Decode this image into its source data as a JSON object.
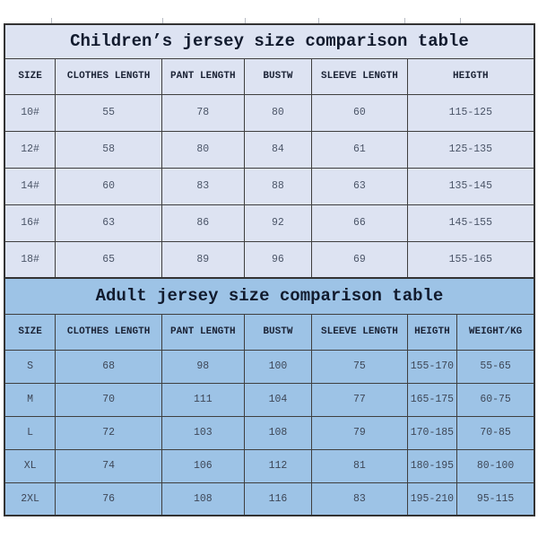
{
  "colors": {
    "children_bg": "#dde3f2",
    "adult_bg": "#9dc3e6",
    "grid_line": "#3f3f3f",
    "outer_border": "#333333",
    "title_text": "#121b2e",
    "data_text": "#4b5568"
  },
  "children_table": {
    "title": "Children’s jersey size comparison table",
    "columns": [
      "SIZE",
      "CLOTHES LENGTH",
      "PANT LENGTH",
      "BUSTW",
      "SLEEVE LENGTH",
      "HEIGTH"
    ],
    "rows": [
      [
        "10#",
        "55",
        "78",
        "80",
        "60",
        "115-125"
      ],
      [
        "12#",
        "58",
        "80",
        "84",
        "61",
        "125-135"
      ],
      [
        "14#",
        "60",
        "83",
        "88",
        "63",
        "135-145"
      ],
      [
        "16#",
        "63",
        "86",
        "92",
        "66",
        "145-155"
      ],
      [
        "18#",
        "65",
        "89",
        "96",
        "69",
        "155-165"
      ]
    ]
  },
  "adult_table": {
    "title": "Adult jersey size comparison table",
    "columns": [
      "SIZE",
      "CLOTHES LENGTH",
      "PANT LENGTH",
      "BUSTW",
      "SLEEVE LENGTH",
      "HEIGTH",
      "WEIGHT/KG"
    ],
    "rows": [
      [
        "S",
        "68",
        "98",
        "100",
        "75",
        "155-170",
        "55-65"
      ],
      [
        "M",
        "70",
        "111",
        "104",
        "77",
        "165-175",
        "60-75"
      ],
      [
        "L",
        "72",
        "103",
        "108",
        "79",
        "170-185",
        "70-85"
      ],
      [
        "XL",
        "74",
        "106",
        "112",
        "81",
        "180-195",
        "80-100"
      ],
      [
        "2XL",
        "76",
        "108",
        "116",
        "83",
        "195-210",
        "95-115"
      ]
    ]
  }
}
